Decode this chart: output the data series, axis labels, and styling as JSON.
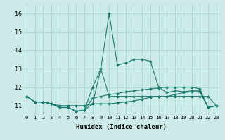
{
  "xlabel": "Humidex (Indice chaleur)",
  "background_color": "#cceae8",
  "grid_color": "#aad4d0",
  "line_color": "#1a7a6e",
  "x_ticks": [
    0,
    1,
    2,
    3,
    4,
    5,
    6,
    7,
    8,
    9,
    10,
    11,
    12,
    13,
    14,
    15,
    16,
    17,
    18,
    19,
    20,
    21,
    22,
    23
  ],
  "ylim": [
    10.5,
    16.5
  ],
  "yticks": [
    11,
    12,
    13,
    14,
    15,
    16
  ],
  "series": [
    [
      11.5,
      11.2,
      11.2,
      11.1,
      10.9,
      10.9,
      10.7,
      10.75,
      11.1,
      13.0,
      16.0,
      13.2,
      13.3,
      13.5,
      13.5,
      13.4,
      12.0,
      11.7,
      11.8,
      11.75,
      11.8,
      11.8,
      10.9,
      11.0
    ],
    [
      11.5,
      11.2,
      11.2,
      11.1,
      11.0,
      11.0,
      11.0,
      11.0,
      11.1,
      11.1,
      11.1,
      11.15,
      11.2,
      11.25,
      11.35,
      11.45,
      11.5,
      11.5,
      11.5,
      11.5,
      11.5,
      11.5,
      11.5,
      11.0
    ],
    [
      11.5,
      11.2,
      11.2,
      11.1,
      10.9,
      10.9,
      10.7,
      10.75,
      11.4,
      11.5,
      11.6,
      11.65,
      11.75,
      11.8,
      11.85,
      11.9,
      11.95,
      12.0,
      12.0,
      12.0,
      12.0,
      11.9,
      10.9,
      11.0
    ],
    [
      11.5,
      11.2,
      11.2,
      11.1,
      10.9,
      10.9,
      10.7,
      10.75,
      12.0,
      13.0,
      11.5,
      11.5,
      11.5,
      11.5,
      11.5,
      11.5,
      11.5,
      11.5,
      11.6,
      11.7,
      11.75,
      11.75,
      10.9,
      11.0
    ]
  ]
}
